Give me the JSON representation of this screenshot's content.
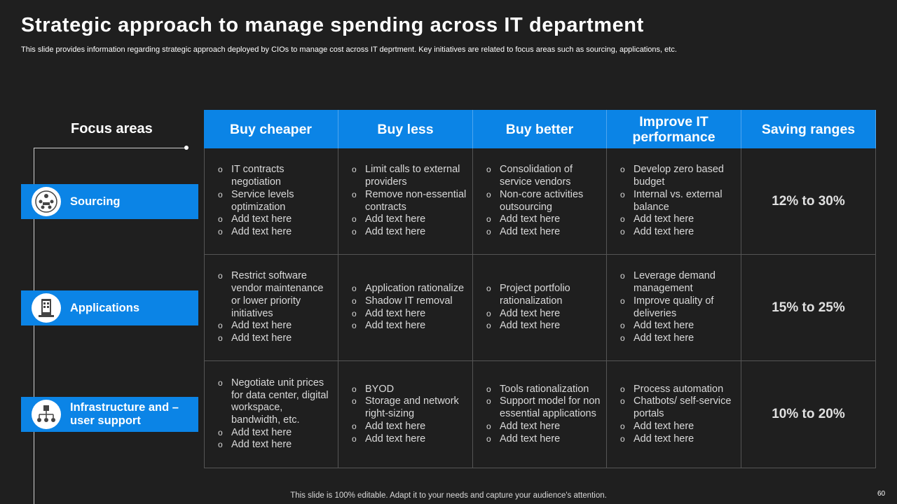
{
  "title": "Strategic approach to manage spending across IT department",
  "subtitle": "This slide provides information regarding strategic approach deployed by CIOs to manage cost across IT deprtment. Key initiatives are related to focus areas such as sourcing, applications, etc.",
  "focus_areas": {
    "title": "Focus areas",
    "items": [
      {
        "label": "Sourcing",
        "icon": "people-network-icon"
      },
      {
        "label": "Applications",
        "icon": "mobile-app-icon"
      },
      {
        "label": "Infrastructure and – user support",
        "icon": "org-structure-icon"
      }
    ]
  },
  "table": {
    "headers": [
      "Buy cheaper",
      "Buy less",
      "Buy better",
      "Improve IT performance",
      "Saving ranges"
    ],
    "rows": [
      {
        "cells": [
          [
            "IT contracts negotiation",
            "Service levels optimization",
            "Add text here",
            "Add text here"
          ],
          [
            "Limit calls to external providers",
            "Remove non-essential contracts",
            "Add text here",
            "Add text here"
          ],
          [
            "Consolidation of service vendors",
            "Non-core activities outsourcing",
            "Add text here",
            "Add text here"
          ],
          [
            "Develop zero based budget",
            "Internal vs. external balance",
            "Add text here",
            "Add text here"
          ]
        ],
        "saving": "12% to 30%"
      },
      {
        "cells": [
          [
            "Restrict software vendor maintenance or lower priority initiatives",
            "Add text here",
            "Add text here"
          ],
          [
            "Application rationalize",
            "Shadow IT removal",
            "Add text here",
            "Add text here"
          ],
          [
            "Project portfolio rationalization",
            "Add text here",
            "Add text here"
          ],
          [
            "Leverage demand management",
            "Improve quality of deliveries",
            "Add text here",
            "Add text here"
          ]
        ],
        "saving": "15% to 25%"
      },
      {
        "cells": [
          [
            "Negotiate unit prices for data center, digital workspace, bandwidth, etc.",
            "Add text here",
            "Add text here"
          ],
          [
            "BYOD",
            "Storage and network right-sizing",
            "Add text here",
            "Add text here"
          ],
          [
            "Tools rationalization",
            "Support model for non essential applications",
            "Add text here",
            "Add text here"
          ],
          [
            "Process automation",
            "Chatbots/ self-service portals",
            "Add text here",
            "Add text here"
          ]
        ],
        "saving": "10% to 20%"
      }
    ]
  },
  "footer": "This slide is 100% editable. Adapt it to your needs and capture your audience's attention.",
  "page_number": "60",
  "colors": {
    "background": "#1f1f1f",
    "accent": "#0b84e6",
    "text": "#d9d9d9"
  }
}
